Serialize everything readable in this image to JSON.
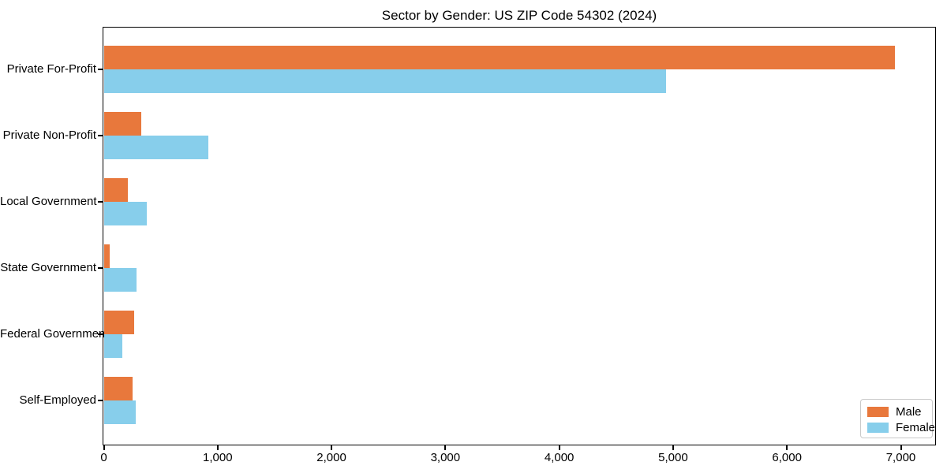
{
  "chart_data": {
    "type": "bar",
    "orientation": "horizontal",
    "title": "Sector by Gender: US ZIP Code 54302 (2024)",
    "categories": [
      "Private For-Profit",
      "Private Non-Profit",
      "Local Government",
      "State Government",
      "Federal Government",
      "Self-Employed"
    ],
    "series": [
      {
        "name": "Male",
        "color": "#E8783C",
        "values": [
          6950,
          330,
          210,
          55,
          265,
          250
        ]
      },
      {
        "name": "Female",
        "color": "#87CEEB",
        "values": [
          4940,
          915,
          375,
          290,
          165,
          280
        ]
      }
    ],
    "xlabel": "",
    "ylabel": "",
    "xlim": [
      0,
      7300
    ],
    "x_ticks": [
      0,
      1000,
      2000,
      3000,
      4000,
      5000,
      6000,
      7000
    ],
    "x_tick_labels": [
      "0",
      "1,000",
      "2,000",
      "3,000",
      "4,000",
      "5,000",
      "6,000",
      "7,000"
    ],
    "grid": false,
    "legend_position": "lower right",
    "axis_color": "#000000",
    "background_color": "#ffffff"
  }
}
